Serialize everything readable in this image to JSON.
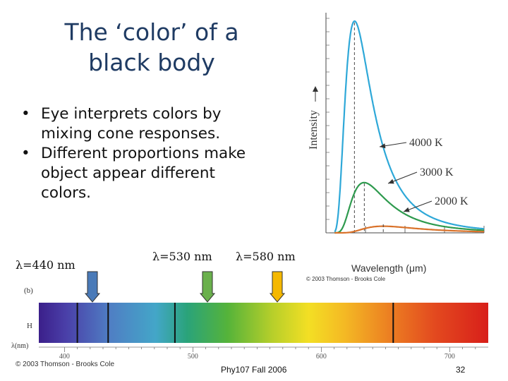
{
  "slide": {
    "title_line1": "The ‘color’ of a",
    "title_line2": "black body",
    "bullets": [
      "Eye interprets colors by mixing cone responses.",
      "Different proportions make object appear different colors."
    ],
    "bullet_symbol": "•",
    "course": "Phy107 Fall 2006",
    "page_number": "32"
  },
  "wavelength_markers": [
    {
      "label": "λ=440 nm",
      "wavelength_nm": 440,
      "color": "#4a7ab8"
    },
    {
      "label": "λ=530 nm",
      "wavelength_nm": 530,
      "color": "#6ab04c"
    },
    {
      "label": "λ=580 nm",
      "wavelength_nm": 580,
      "color": "#f5b800"
    }
  ],
  "spectrum": {
    "panel_label": "(b)",
    "row_label_h": "H",
    "axis_label": "λ(nm)",
    "ticks": [
      "400",
      "500",
      "600",
      "700"
    ],
    "copyright": "© 2003 Thomson - Brooks Cole"
  },
  "chart_data": {
    "type": "line",
    "title": "",
    "xlabel": "Wavelength (μm)",
    "ylabel": "Intensity",
    "xlim": [
      0,
      4
    ],
    "xticks": [
      "0",
      "1",
      "2",
      "3",
      "4"
    ],
    "copyright": "© 2003 Thomson - Brooks Cole",
    "series": [
      {
        "name": "4000 K",
        "color": "#2ea8d8",
        "peak_um": 0.72,
        "peak_rel": 1.0
      },
      {
        "name": "3000 K",
        "color": "#2e9a4e",
        "peak_um": 0.97,
        "peak_rel": 0.24
      },
      {
        "name": "2000 K",
        "color": "#d9722a",
        "peak_um": 1.45,
        "peak_rel": 0.047
      }
    ]
  }
}
